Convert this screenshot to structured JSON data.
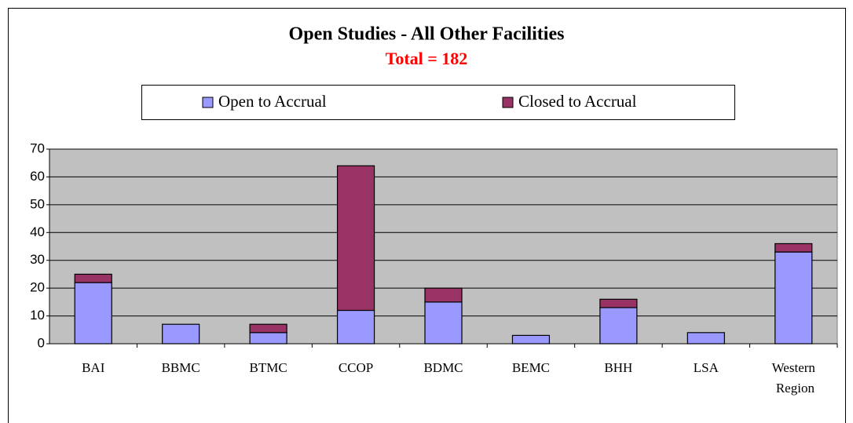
{
  "chart_data": {
    "type": "stacked_bar",
    "title": "Open Studies - All Other Facilities",
    "subtitle": "Total = 182",
    "categories": [
      "BAI",
      "BBMC",
      "BTMC",
      "CCOP",
      "BDMC",
      "BEMC",
      "BHH",
      "LSA",
      "Western Region"
    ],
    "series": [
      {
        "name": "Open to Accrual",
        "color": "#9999ff",
        "values": [
          22,
          7,
          4,
          12,
          15,
          3,
          13,
          4,
          33
        ]
      },
      {
        "name": "Closed to Accrual",
        "color": "#993366",
        "values": [
          3,
          0,
          3,
          52,
          5,
          0,
          3,
          0,
          3
        ]
      }
    ],
    "ylim": [
      0,
      70
    ],
    "yticks": [
      0,
      10,
      20,
      30,
      40,
      50,
      60,
      70
    ],
    "grid": true,
    "legend": "top"
  }
}
